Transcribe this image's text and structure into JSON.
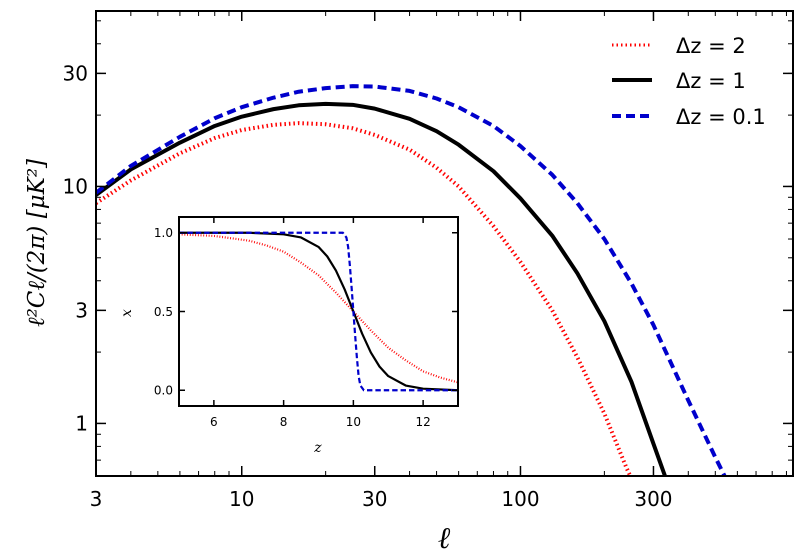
{
  "chart_data": [
    {
      "type": "line",
      "xlabel": "ℓ",
      "ylabel": "ℓ²Cℓ/(2π) [μK²]",
      "xscale": "log",
      "yscale": "log",
      "xlim": [
        3,
        950
      ],
      "ylim": [
        0.6,
        55
      ],
      "x_ticks": [
        3,
        10,
        30,
        100,
        300
      ],
      "x_tick_labels": [
        "3",
        "10",
        "30",
        "100",
        "300"
      ],
      "y_ticks": [
        1,
        3,
        10,
        30
      ],
      "y_tick_labels": [
        "1",
        "3",
        "10",
        "30"
      ],
      "grid": false,
      "legend_position": "top-right",
      "series": [
        {
          "name": "Δz = 2",
          "color": "#ff0000",
          "style": "dotted",
          "x": [
            3,
            4,
            6,
            8,
            10,
            13,
            16,
            20,
            25,
            30,
            40,
            50,
            60,
            80,
            100,
            130,
            160,
            200,
            240,
            260
          ],
          "y": [
            8.5,
            10.6,
            13.8,
            16.0,
            17.3,
            18.2,
            18.5,
            18.3,
            17.6,
            16.5,
            14.3,
            12.0,
            10.0,
            6.8,
            4.8,
            3.0,
            1.9,
            1.1,
            0.65,
            0.53
          ]
        },
        {
          "name": "Δz = 1",
          "color": "#000000",
          "style": "solid",
          "x": [
            3,
            4,
            6,
            8,
            10,
            13,
            16,
            20,
            25,
            30,
            40,
            50,
            60,
            80,
            100,
            130,
            160,
            200,
            250,
            300,
            330
          ],
          "y": [
            9.2,
            11.8,
            15.3,
            18.0,
            19.7,
            21.2,
            22.0,
            22.3,
            22.1,
            21.3,
            19.3,
            17.1,
            15.0,
            11.6,
            8.9,
            6.2,
            4.3,
            2.7,
            1.5,
            0.82,
            0.6
          ]
        },
        {
          "name": "Δz = 0.1",
          "color": "#0000cc",
          "style": "dashed",
          "x": [
            3,
            4,
            6,
            8,
            10,
            13,
            16,
            20,
            25,
            30,
            40,
            50,
            60,
            80,
            100,
            130,
            160,
            200,
            250,
            300,
            400,
            500,
            560
          ],
          "y": [
            9.4,
            12.2,
            16.2,
            19.4,
            21.6,
            23.7,
            25.1,
            26.0,
            26.5,
            26.4,
            25.3,
            23.5,
            21.6,
            18.0,
            14.8,
            11.2,
            8.5,
            6.0,
            3.9,
            2.6,
            1.25,
            0.72,
            0.55
          ]
        }
      ]
    },
    {
      "type": "line",
      "xlabel": "z",
      "ylabel": "x",
      "xlim": [
        5,
        13
      ],
      "ylim": [
        -0.1,
        1.1
      ],
      "x_ticks": [
        6,
        8,
        10,
        12
      ],
      "x_tick_labels": [
        "6",
        "8",
        "10",
        "12"
      ],
      "y_ticks": [
        0,
        0.5,
        1
      ],
      "y_tick_labels": [
        "0.0",
        "0.5",
        "1.0"
      ],
      "grid": false,
      "legend_position": "none",
      "series": [
        {
          "name": "Δz = 2",
          "color": "#ff0000",
          "style": "dotted",
          "x": [
            5,
            6,
            7,
            7.5,
            8,
            8.5,
            9,
            9.5,
            10,
            10.5,
            11,
            11.5,
            12,
            12.5,
            13
          ],
          "y": [
            0.99,
            0.98,
            0.95,
            0.92,
            0.88,
            0.81,
            0.73,
            0.62,
            0.5,
            0.38,
            0.27,
            0.19,
            0.12,
            0.08,
            0.05
          ]
        },
        {
          "name": "Δz = 1",
          "color": "#000000",
          "style": "solid",
          "x": [
            5,
            7,
            8,
            8.5,
            9,
            9.25,
            9.5,
            9.75,
            10,
            10.25,
            10.5,
            10.75,
            11,
            11.5,
            12,
            13
          ],
          "y": [
            1.0,
            1.0,
            0.99,
            0.97,
            0.91,
            0.85,
            0.76,
            0.64,
            0.5,
            0.36,
            0.24,
            0.15,
            0.09,
            0.03,
            0.01,
            0.0
          ]
        },
        {
          "name": "Δz = 0.1",
          "color": "#0000cc",
          "style": "dashed",
          "x": [
            5,
            9.7,
            9.8,
            9.85,
            9.9,
            9.95,
            10,
            10.05,
            10.1,
            10.15,
            10.2,
            10.3,
            13
          ],
          "y": [
            1.0,
            1.0,
            0.97,
            0.91,
            0.79,
            0.65,
            0.5,
            0.35,
            0.21,
            0.09,
            0.03,
            0.0,
            0.0
          ]
        }
      ]
    }
  ]
}
